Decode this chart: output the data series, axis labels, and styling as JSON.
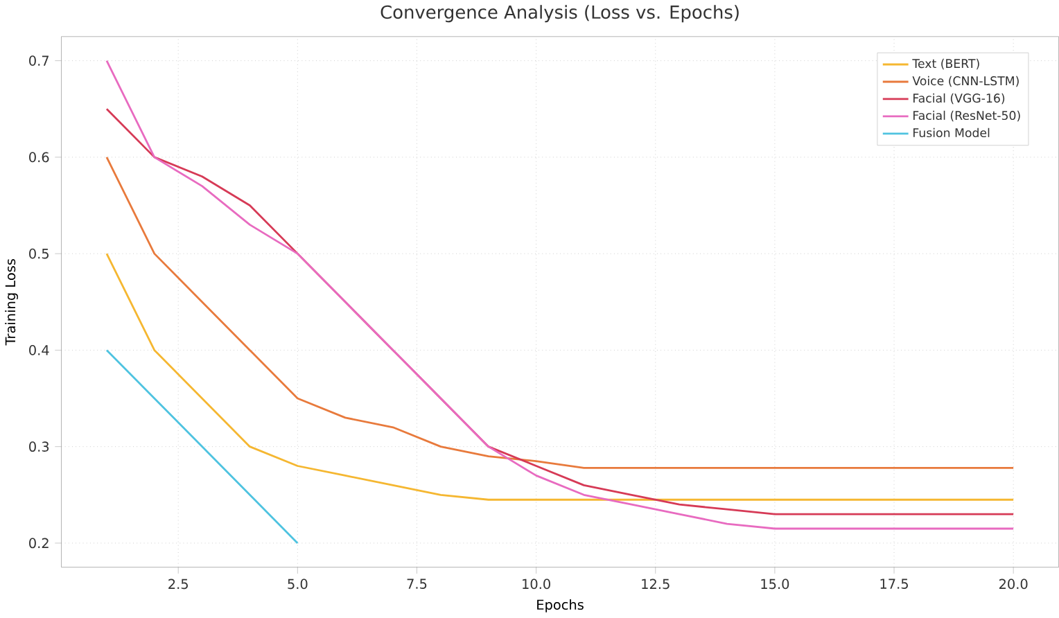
{
  "chart_data": {
    "type": "line",
    "title": "Convergence Analysis (Loss vs. Epochs)",
    "xlabel": "Epochs",
    "ylabel": "Training Loss",
    "xlim": [
      0.05,
      20.95
    ],
    "ylim": [
      0.175,
      0.725
    ],
    "xticks": [
      {
        "value": 2.5,
        "label": "2.5"
      },
      {
        "value": 5,
        "label": "5.0"
      },
      {
        "value": 7.5,
        "label": "7.5"
      },
      {
        "value": 10,
        "label": "10.0"
      },
      {
        "value": 12.5,
        "label": "12.5"
      },
      {
        "value": 15,
        "label": "15.0"
      },
      {
        "value": 17.5,
        "label": "17.5"
      },
      {
        "value": 20,
        "label": "20.0"
      }
    ],
    "yticks": [
      0.2,
      0.3,
      0.4,
      0.5,
      0.6,
      0.7
    ],
    "grid": true,
    "legend": "top right",
    "line_style": "solid",
    "series": [
      {
        "name": "Text (BERT)",
        "color": "#f5b731",
        "x": [
          1,
          2,
          3,
          4,
          5,
          6,
          7,
          8,
          9,
          10,
          11,
          12,
          13,
          14,
          15,
          16,
          17,
          18,
          19,
          20
        ],
        "values": [
          0.5,
          0.4,
          0.35,
          0.3,
          0.28,
          0.27,
          0.26,
          0.25,
          0.245,
          0.245,
          0.245,
          0.245,
          0.245,
          0.245,
          0.245,
          0.245,
          0.245,
          0.245,
          0.245,
          0.245
        ]
      },
      {
        "name": "Voice (CNN-LSTM)",
        "color": "#e87a3c",
        "x": [
          1,
          2,
          3,
          4,
          5,
          6,
          7,
          8,
          9,
          10,
          11,
          12,
          13,
          14,
          15,
          16,
          17,
          18,
          19,
          20
        ],
        "values": [
          0.6,
          0.5,
          0.45,
          0.4,
          0.35,
          0.33,
          0.32,
          0.3,
          0.29,
          0.285,
          0.278,
          0.278,
          0.278,
          0.278,
          0.278,
          0.278,
          0.278,
          0.278,
          0.278,
          0.278
        ]
      },
      {
        "name": "Facial (VGG-16)",
        "color": "#d63a56",
        "x": [
          1,
          2,
          3,
          4,
          5,
          6,
          7,
          8,
          9,
          10,
          11,
          12,
          13,
          14,
          15,
          16,
          17,
          18,
          19,
          20
        ],
        "values": [
          0.65,
          0.6,
          0.58,
          0.55,
          0.5,
          0.45,
          0.4,
          0.35,
          0.3,
          0.28,
          0.26,
          0.25,
          0.24,
          0.235,
          0.23,
          0.23,
          0.23,
          0.23,
          0.23,
          0.23
        ]
      },
      {
        "name": "Facial (ResNet-50)",
        "color": "#e86bc0",
        "x": [
          1,
          2,
          3,
          4,
          5,
          6,
          7,
          8,
          9,
          10,
          11,
          12,
          13,
          14,
          15,
          16,
          17,
          18,
          19,
          20
        ],
        "values": [
          0.7,
          0.6,
          0.57,
          0.53,
          0.5,
          0.45,
          0.4,
          0.35,
          0.3,
          0.27,
          0.25,
          0.24,
          0.23,
          0.22,
          0.215,
          0.215,
          0.215,
          0.215,
          0.215,
          0.215
        ]
      },
      {
        "name": "Fusion Model",
        "color": "#4ec3e0",
        "x": [
          1,
          2,
          3,
          4,
          5
        ],
        "values": [
          0.4,
          0.35,
          0.3,
          0.25,
          0.2
        ]
      }
    ]
  }
}
